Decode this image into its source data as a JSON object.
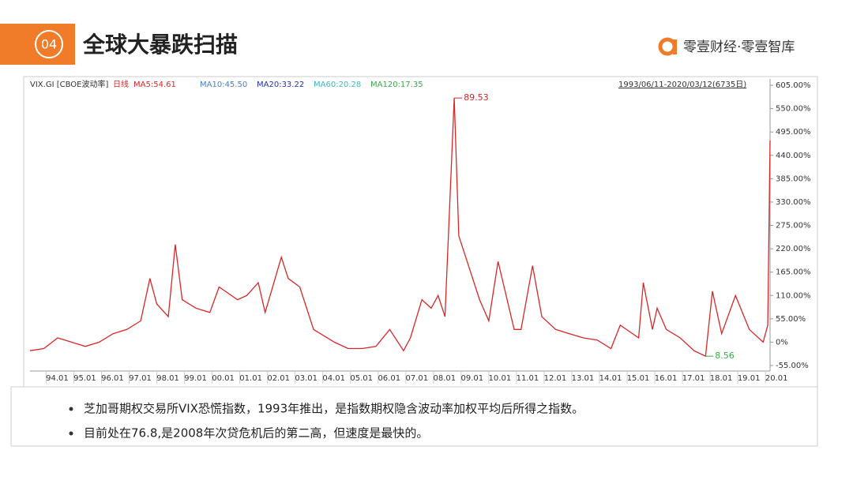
{
  "header": {
    "number": "04",
    "title": "全球大暴跌扫描",
    "brand": "零壹财经·零壹智库"
  },
  "chart_data": {
    "type": "line",
    "legend": [
      "VIX.GI [CBOE波动率]",
      "日线",
      "MA5:54.61",
      "MA10:45.50",
      "MA20:33.22",
      "MA60:20.28",
      "MA120:17.35"
    ],
    "legend_colors": [
      "#333333",
      "#d62728",
      "#d62728",
      "#4a7fc1",
      "#2233aa",
      "#3fb5c9",
      "#3aa84a"
    ],
    "period": "1993/06/11-2020/03/12(6735日)",
    "x": [
      "93.06",
      "93.12",
      "94.06",
      "94.12",
      "95.06",
      "95.12",
      "96.06",
      "96.12",
      "97.06",
      "97.10",
      "98.01",
      "98.06",
      "98.09",
      "98.12",
      "99.06",
      "99.12",
      "00.04",
      "00.12",
      "01.04",
      "01.09",
      "01.12",
      "02.07",
      "02.10",
      "03.03",
      "03.09",
      "04.06",
      "04.12",
      "05.06",
      "05.12",
      "06.06",
      "06.12",
      "07.03",
      "07.08",
      "07.12",
      "08.03",
      "08.06",
      "08.10",
      "08.12",
      "09.03",
      "09.09",
      "10.01",
      "10.05",
      "10.12",
      "11.03",
      "11.08",
      "11.12",
      "12.06",
      "12.12",
      "13.06",
      "13.12",
      "14.06",
      "14.10",
      "15.06",
      "15.08",
      "15.12",
      "16.02",
      "16.06",
      "16.12",
      "17.06",
      "17.11",
      "18.02",
      "18.06",
      "18.12",
      "19.06",
      "19.12",
      "20.02",
      "20.03"
    ],
    "series": [
      {
        "name": "日线",
        "color": "#d62728",
        "values": [
          -20,
          -15,
          10,
          0,
          -10,
          0,
          20,
          30,
          50,
          150,
          90,
          60,
          230,
          100,
          80,
          70,
          130,
          100,
          110,
          140,
          70,
          200,
          150,
          130,
          30,
          0,
          -15,
          -15,
          -10,
          30,
          -20,
          10,
          100,
          80,
          110,
          60,
          575,
          250,
          200,
          100,
          50,
          190,
          30,
          30,
          180,
          60,
          30,
          20,
          10,
          5,
          -15,
          40,
          10,
          140,
          30,
          80,
          30,
          10,
          -20,
          -33,
          120,
          20,
          110,
          30,
          0,
          40,
          475
        ]
      }
    ],
    "xlim": [
      "93.06",
      "20.03"
    ],
    "xticks": [
      "94.01",
      "95.01",
      "96.01",
      "97.01",
      "98.01",
      "99.01",
      "00.01",
      "01.01",
      "02.01",
      "03.01",
      "04.01",
      "05.01",
      "06.01",
      "07.01",
      "08.01",
      "09.01",
      "10.01",
      "11.01",
      "12.01",
      "13.01",
      "14.01",
      "15.01",
      "16.01",
      "17.01",
      "18.01",
      "19.01",
      "20.01"
    ],
    "ylim": [
      -55,
      605
    ],
    "yticks": [
      {
        "value": -55,
        "label": "-55.00%"
      },
      {
        "value": 0,
        "label": "0%"
      },
      {
        "value": 55,
        "label": "55.00%"
      },
      {
        "value": 110,
        "label": "110.00%"
      },
      {
        "value": 165,
        "label": "165.00%"
      },
      {
        "value": 220,
        "label": "220.00%"
      },
      {
        "value": 275,
        "label": "275.00%"
      },
      {
        "value": 330,
        "label": "330.00%"
      },
      {
        "value": 385,
        "label": "385.00%"
      },
      {
        "value": 440,
        "label": "440.00%"
      },
      {
        "value": 495,
        "label": "495.00%"
      },
      {
        "value": 550,
        "label": "550.00%"
      },
      {
        "value": 605,
        "label": "605.00%"
      }
    ],
    "annotations": [
      {
        "label": "89.53",
        "x": "08.10",
        "y": 575,
        "color": "#d62728"
      },
      {
        "label": "8.56",
        "x": "17.11",
        "y": -33,
        "color": "#3aa84a"
      }
    ],
    "grid": false
  },
  "bullets": [
    "芝加哥期权交易所VIX恐慌指数，1993年推出，是指数期权隐含波动率加权平均后所得之指数。",
    "目前处在76.8,是2008年次贷危机后的第二高，但速度是最快的。"
  ]
}
